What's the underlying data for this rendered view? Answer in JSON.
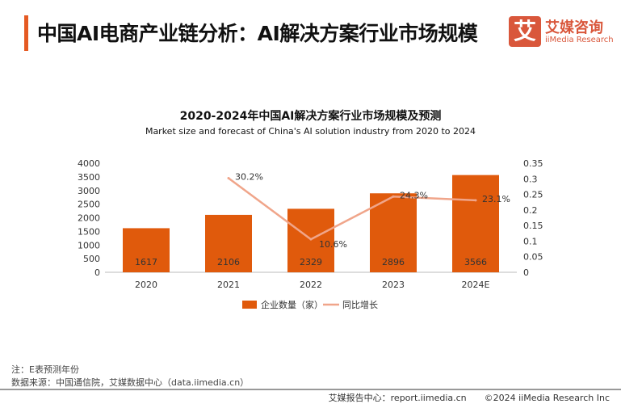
{
  "header": {
    "title": "中国AI电商产业链分析：AI解决方案行业市场规模",
    "logo_mark": "艾",
    "logo_cn": "艾媒咨询",
    "logo_en": "iiMedia Research"
  },
  "chart_data": {
    "type": "bar+line",
    "title": "2020-2024年中国AI解决方案行业市场规模及预测",
    "subtitle": "Market size and forecast of China's AI solution industry from 2020 to 2024",
    "categories": [
      "2020",
      "2021",
      "2022",
      "2023",
      "2024E"
    ],
    "series": [
      {
        "name": "企业数量（家）",
        "type": "bar",
        "axis": "left",
        "values": [
          1617,
          2106,
          2329,
          2896,
          3566
        ],
        "labels": [
          "1617",
          "2106",
          "2329",
          "2896",
          "3566"
        ],
        "color": "#e05a0c"
      },
      {
        "name": "同比增长",
        "type": "line",
        "axis": "right",
        "values": [
          null,
          0.302,
          0.106,
          0.243,
          0.231
        ],
        "labels": [
          "",
          "30.2%",
          "10.6%",
          "24.3%",
          "23.1%"
        ],
        "color": "#f0a58a"
      }
    ],
    "ylim_left": [
      0,
      4000
    ],
    "yticks_left": [
      "0",
      "500",
      "1000",
      "1500",
      "2000",
      "2500",
      "3000",
      "3500",
      "4000"
    ],
    "ylim_right": [
      0,
      0.35
    ],
    "yticks_right": [
      "0",
      "0.05",
      "0.1",
      "0.15",
      "0.2",
      "0.25",
      "0.3",
      "0.35"
    ],
    "grid": false,
    "legend": "bottom"
  },
  "notes": {
    "note": "注：E表预测年份",
    "source": "数据来源：中国通信院，艾媒数据中心（data.iimedia.cn）"
  },
  "footer": {
    "text": "艾媒报告中心：report.iimedia.cn　　©2024  iiMedia Research  Inc"
  }
}
